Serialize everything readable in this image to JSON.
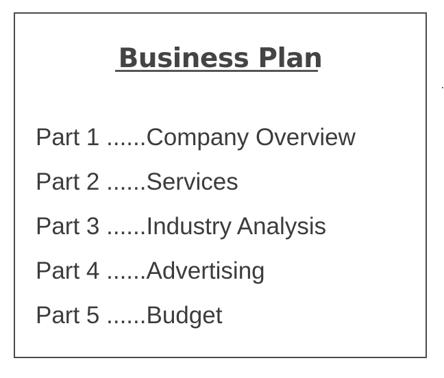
{
  "document": {
    "title": "Business Plan",
    "contents": [
      {
        "part": "Part 1",
        "leader": "......",
        "section": "Company Overview"
      },
      {
        "part": "Part 2",
        "leader": "......",
        "section": "Services"
      },
      {
        "part": "Part 3",
        "leader": "......",
        "section": "Industry Analysis"
      },
      {
        "part": "Part 4",
        "leader": "......",
        "section": "Advertising"
      },
      {
        "part": "Part 5",
        "leader": "......",
        "section": "Budget"
      }
    ]
  }
}
